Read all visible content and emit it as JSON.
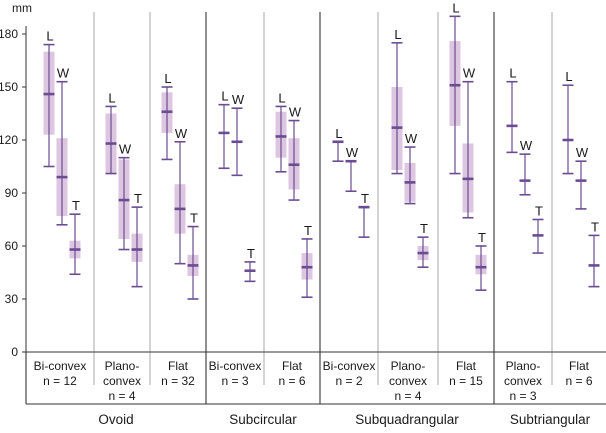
{
  "chart_data": {
    "type": "boxplot",
    "ylabel": "mm",
    "ylim": [
      0,
      180
    ],
    "yticks": [
      0,
      30,
      60,
      90,
      120,
      150,
      180
    ],
    "grid": false,
    "measure_letters": [
      "L",
      "W",
      "T"
    ],
    "colors": {
      "box": "#dcc6e0",
      "line": "#6b4c93",
      "divider_minor": "#a9a9a9",
      "divider_major": "#222222"
    },
    "groups": [
      {
        "name": "Ovoid",
        "categories": [
          {
            "name": [
              "Bi-convex"
            ],
            "n_label": "n = 12",
            "boxes": [
              {
                "measure": "L",
                "whisker_low": 105,
                "q1": 123,
                "median": 146,
                "q3": 170,
                "whisker_high": 174
              },
              {
                "measure": "W",
                "whisker_low": 72,
                "q1": 77,
                "median": 99,
                "q3": 121,
                "whisker_high": 153
              },
              {
                "measure": "T",
                "whisker_low": 44,
                "q1": 53,
                "median": 58,
                "q3": 63,
                "whisker_high": 78
              }
            ]
          },
          {
            "name": [
              "Plano-",
              "convex"
            ],
            "n_label": "n = 4",
            "boxes": [
              {
                "measure": "L",
                "whisker_low": 101,
                "q1": 101,
                "median": 118,
                "q3": 135,
                "whisker_high": 139
              },
              {
                "measure": "W",
                "whisker_low": 58,
                "q1": 64,
                "median": 86,
                "q3": 109,
                "whisker_high": 110
              },
              {
                "measure": "T",
                "whisker_low": 37,
                "q1": 51,
                "median": 58,
                "q3": 67,
                "whisker_high": 82
              }
            ]
          },
          {
            "name": [
              "Flat"
            ],
            "n_label": "n = 32",
            "boxes": [
              {
                "measure": "L",
                "whisker_low": 109,
                "q1": 124,
                "median": 136,
                "q3": 147,
                "whisker_high": 150
              },
              {
                "measure": "W",
                "whisker_low": 50,
                "q1": 67,
                "median": 81,
                "q3": 95,
                "whisker_high": 119
              },
              {
                "measure": "T",
                "whisker_low": 30,
                "q1": 43,
                "median": 49,
                "q3": 55,
                "whisker_high": 71
              }
            ]
          }
        ]
      },
      {
        "name": "Subcircular",
        "categories": [
          {
            "name": [
              "Bi-convex"
            ],
            "n_label": "n = 3",
            "boxes": [
              {
                "measure": "L",
                "whisker_low": 104,
                "q1": 124,
                "median": 124,
                "q3": 124,
                "whisker_high": 140
              },
              {
                "measure": "W",
                "whisker_low": 100,
                "q1": 119,
                "median": 119,
                "q3": 119,
                "whisker_high": 138
              },
              {
                "measure": "T",
                "whisker_low": 40,
                "q1": 46,
                "median": 46,
                "q3": 46,
                "whisker_high": 51
              }
            ]
          },
          {
            "name": [
              "Flat"
            ],
            "n_label": "n = 6",
            "boxes": [
              {
                "measure": "L",
                "whisker_low": 102,
                "q1": 110,
                "median": 122,
                "q3": 136,
                "whisker_high": 139
              },
              {
                "measure": "W",
                "whisker_low": 86,
                "q1": 92,
                "median": 106,
                "q3": 121,
                "whisker_high": 131
              },
              {
                "measure": "T",
                "whisker_low": 31,
                "q1": 41,
                "median": 48,
                "q3": 56,
                "whisker_high": 64
              }
            ]
          }
        ]
      },
      {
        "name": "Subquadrangular",
        "categories": [
          {
            "name": [
              "Bi-convex"
            ],
            "n_label": "n = 2",
            "boxes": [
              {
                "measure": "L",
                "whisker_low": 108,
                "q1": 119,
                "median": 119,
                "q3": 119,
                "whisker_high": 119
              },
              {
                "measure": "W",
                "whisker_low": 91,
                "q1": 108,
                "median": 108,
                "q3": 108,
                "whisker_high": 108
              },
              {
                "measure": "T",
                "whisker_low": 65,
                "q1": 82,
                "median": 82,
                "q3": 82,
                "whisker_high": 82
              }
            ]
          },
          {
            "name": [
              "Plano-",
              "convex"
            ],
            "n_label": "n = 4",
            "boxes": [
              {
                "measure": "L",
                "whisker_low": 101,
                "q1": 103,
                "median": 127,
                "q3": 150,
                "whisker_high": 175
              },
              {
                "measure": "W",
                "whisker_low": 84,
                "q1": 85,
                "median": 96,
                "q3": 107,
                "whisker_high": 116
              },
              {
                "measure": "T",
                "whisker_low": 48,
                "q1": 52,
                "median": 56,
                "q3": 60,
                "whisker_high": 65
              }
            ]
          },
          {
            "name": [
              "Flat"
            ],
            "n_label": "n = 15",
            "boxes": [
              {
                "measure": "L",
                "whisker_low": 101,
                "q1": 128,
                "median": 151,
                "q3": 176,
                "whisker_high": 190
              },
              {
                "measure": "W",
                "whisker_low": 76,
                "q1": 79,
                "median": 98,
                "q3": 118,
                "whisker_high": 153
              },
              {
                "measure": "T",
                "whisker_low": 35,
                "q1": 44,
                "median": 48,
                "q3": 55,
                "whisker_high": 60
              }
            ]
          }
        ]
      },
      {
        "name": "Subtriangular",
        "categories": [
          {
            "name": [
              "Plano-",
              "convex"
            ],
            "n_label": "n = 3",
            "boxes": [
              {
                "measure": "L",
                "whisker_low": 113,
                "q1": 128,
                "median": 128,
                "q3": 128,
                "whisker_high": 153
              },
              {
                "measure": "W",
                "whisker_low": 89,
                "q1": 97,
                "median": 97,
                "q3": 97,
                "whisker_high": 112
              },
              {
                "measure": "T",
                "whisker_low": 56,
                "q1": 66,
                "median": 66,
                "q3": 66,
                "whisker_high": 75
              }
            ]
          },
          {
            "name": [
              "Flat"
            ],
            "n_label": "n = 6",
            "boxes": [
              {
                "measure": "L",
                "whisker_low": 101,
                "q1": 120,
                "median": 120,
                "q3": 120,
                "whisker_high": 151
              },
              {
                "measure": "W",
                "whisker_low": 81,
                "q1": 97,
                "median": 97,
                "q3": 97,
                "whisker_high": 108
              },
              {
                "measure": "T",
                "whisker_low": 37,
                "q1": 49,
                "median": 49,
                "q3": 49,
                "whisker_high": 66
              }
            ]
          }
        ]
      }
    ]
  }
}
